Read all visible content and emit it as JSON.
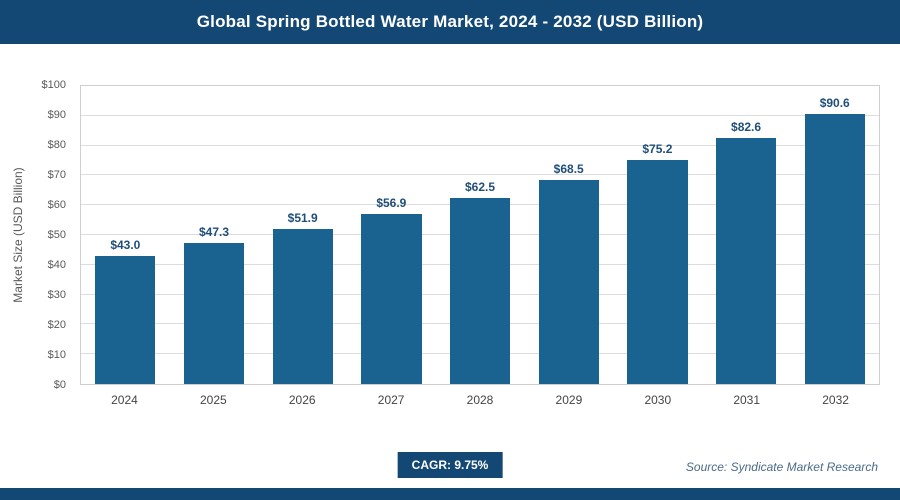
{
  "header": {
    "title": "Global Spring Bottled Water Market, 2024 - 2032 (USD Billion)"
  },
  "chart_data": {
    "type": "bar",
    "title": "Global Spring Bottled Water Market, 2024 - 2032 (USD Billion)",
    "categories": [
      "2024",
      "2025",
      "2026",
      "2027",
      "2028",
      "2029",
      "2030",
      "2031",
      "2032"
    ],
    "values": [
      43.0,
      47.3,
      51.9,
      56.9,
      62.5,
      68.5,
      75.2,
      82.6,
      90.6
    ],
    "value_labels": [
      "$43.0",
      "$47.3",
      "$51.9",
      "$56.9",
      "$62.5",
      "$68.5",
      "$75.2",
      "$82.6",
      "$90.6"
    ],
    "xlabel": "",
    "ylabel": "Market Size (USD Billion)",
    "ylim": [
      0,
      100
    ],
    "ytick_step": 10,
    "ytick_labels": [
      "$0",
      "$10",
      "$20",
      "$30",
      "$40",
      "$50",
      "$60",
      "$70",
      "$80",
      "$90",
      "$100"
    ],
    "grid": true,
    "legend": false
  },
  "footer": {
    "cagr_label": "CAGR: 9.75%",
    "source": "Source: Syndicate Market Research"
  },
  "colors": {
    "accent": "#134875",
    "bar": "#1A6391",
    "value_label": "#1F4E79",
    "grid": "#DDDDDD",
    "axis_text": "#595959",
    "source_text": "#4A6B8A"
  }
}
